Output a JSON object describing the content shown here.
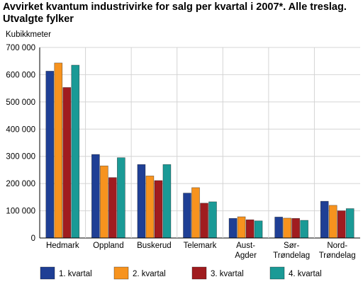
{
  "title_line1": "Avvirket kvantum industrivirke for salg per kvartal i 2007*. Alle treslag.",
  "title_line2": "Utvalgte fylker",
  "chart_data": {
    "type": "bar",
    "ylabel": "Kubikkmeter",
    "ylim": [
      0,
      700000
    ],
    "yticks": [
      "0",
      "100 000",
      "200 000",
      "300 000",
      "400 000",
      "500 000",
      "600 000",
      "700 000"
    ],
    "categories": [
      [
        "Hedmark"
      ],
      [
        "Oppland"
      ],
      [
        "Buskerud"
      ],
      [
        "Telemark"
      ],
      [
        "Aust-",
        "Agder"
      ],
      [
        "Sør-",
        "Trøndelag"
      ],
      [
        "Nord-",
        "Trøndelag"
      ]
    ],
    "series": [
      {
        "name": "1. kvartal",
        "color": "#1f3f95",
        "values": [
          613000,
          307000,
          270000,
          165000,
          72000,
          77000,
          135000
        ]
      },
      {
        "name": "2. kvartal",
        "color": "#f7931e",
        "values": [
          643000,
          265000,
          228000,
          185000,
          78000,
          73000,
          120000
        ]
      },
      {
        "name": "3. kvartal",
        "color": "#a01c1f",
        "values": [
          553000,
          222000,
          211000,
          128000,
          67000,
          72000,
          100000
        ]
      },
      {
        "name": "4. kvartal",
        "color": "#1a9a96",
        "values": [
          635000,
          295000,
          270000,
          133000,
          63000,
          65000,
          108000
        ]
      }
    ],
    "grid": true,
    "legend": "bottom"
  }
}
